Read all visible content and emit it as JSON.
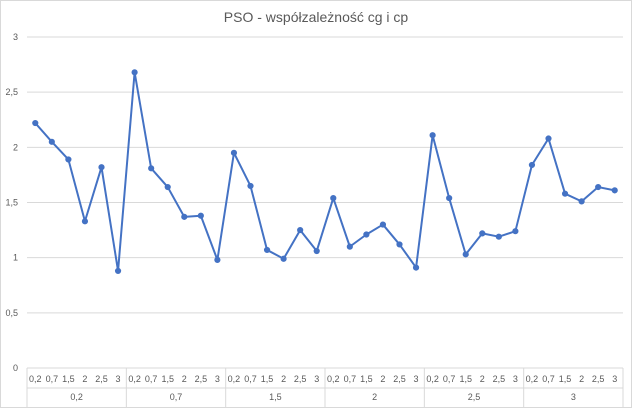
{
  "chart_data": {
    "type": "line",
    "title": "PSO - współzależność cg i cp",
    "xlabel": "",
    "ylabel": "",
    "ylim": [
      0,
      3
    ],
    "yticks": [
      "0",
      "0,5",
      "1",
      "1,5",
      "2",
      "2,5",
      "3"
    ],
    "grid": true,
    "legend": "none",
    "groups": [
      "0,2",
      "0,7",
      "1,5",
      "2",
      "2,5",
      "3"
    ],
    "subcategories": [
      "0,2",
      "0,7",
      "1,5",
      "2",
      "2,5",
      "3"
    ],
    "series": [
      {
        "color": "#4472c4",
        "values": [
          2.22,
          2.05,
          1.89,
          1.33,
          1.82,
          0.88,
          2.68,
          1.81,
          1.64,
          1.37,
          1.38,
          0.98,
          1.95,
          1.65,
          1.07,
          0.99,
          1.25,
          1.06,
          1.54,
          1.1,
          1.21,
          1.3,
          1.12,
          0.91,
          2.11,
          1.54,
          1.03,
          1.22,
          1.19,
          1.24,
          1.84,
          2.08,
          1.58,
          1.51,
          1.64,
          1.61
        ]
      }
    ]
  }
}
